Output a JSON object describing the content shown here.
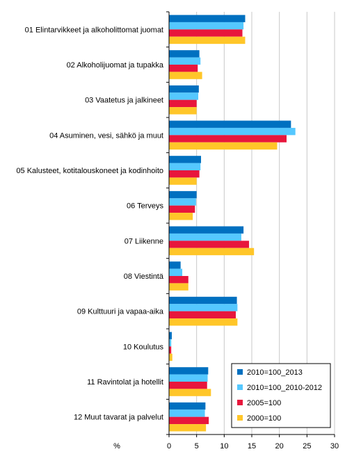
{
  "chart_data": {
    "type": "bar",
    "orientation": "horizontal",
    "categories": [
      "01 Elintarvikkeet ja alkoholittomat juomat",
      "02 Alkoholijuomat ja tupakka",
      "03 Vaatetus ja jalkineet",
      "04 Asuminen, vesi, sähkö ja muut",
      "05 Kalusteet, kotitalouskoneet ja kodinhoito",
      "06 Terveys",
      "07 Liikenne",
      "08 Viestintä",
      "09 Kulttuuri ja vapaa-aika",
      "10 Koulutus",
      "11 Ravintolat ja hotellit",
      "12 Muut tavarat ja palvelut"
    ],
    "series": [
      {
        "name": "2010=100_2013",
        "color": "#0070c0",
        "values": [
          13.8,
          5.5,
          5.4,
          22.1,
          5.8,
          5.0,
          13.5,
          2.1,
          12.3,
          0.5,
          7.1,
          6.6
        ]
      },
      {
        "name": "2010=100_2010-2012",
        "color": "#55c8ff",
        "values": [
          13.5,
          5.7,
          5.3,
          22.9,
          5.7,
          4.9,
          13.1,
          2.4,
          12.4,
          0.4,
          7.0,
          6.5
        ]
      },
      {
        "name": "2005=100",
        "color": "#e8163c",
        "values": [
          13.3,
          5.2,
          5.0,
          21.3,
          5.5,
          4.7,
          14.5,
          3.5,
          12.1,
          0.4,
          6.9,
          7.2
        ]
      },
      {
        "name": "2000=100",
        "color": "#ffc629",
        "values": [
          13.8,
          6.0,
          5.0,
          19.6,
          5.0,
          4.3,
          15.4,
          3.5,
          12.4,
          0.6,
          7.6,
          6.7
        ]
      }
    ],
    "xlim": [
      0,
      30
    ],
    "xticks": [
      "0",
      "5",
      "10",
      "15",
      "20",
      "25",
      "30"
    ],
    "xlabel": "%",
    "ylabel": "",
    "title": "",
    "grid": "vertical",
    "legend_position": "bottom-right"
  }
}
